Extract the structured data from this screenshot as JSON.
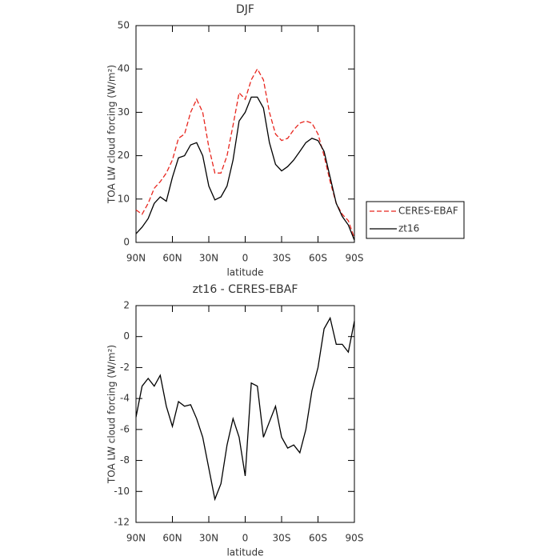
{
  "chart_data": [
    {
      "type": "line",
      "title": "DJF",
      "x_label": "latitude",
      "y_label": "TOA LW cloud forcing (W/m²)",
      "x": [
        90,
        85,
        80,
        75,
        70,
        65,
        60,
        55,
        50,
        45,
        40,
        35,
        30,
        25,
        20,
        15,
        10,
        5,
        0,
        -5,
        -10,
        -15,
        -20,
        -25,
        -30,
        -35,
        -40,
        -45,
        -50,
        -55,
        -60,
        -65,
        -70,
        -75,
        -80,
        -85,
        -90
      ],
      "series": [
        {
          "name": "CERES-EBAF",
          "color": "#e8261e",
          "line_style": "dashed",
          "values": [
            7.5,
            6.5,
            9,
            12.5,
            14,
            16,
            19,
            24,
            25,
            30,
            33,
            30,
            22,
            16,
            16,
            20,
            27,
            34.5,
            33,
            37.5,
            40,
            37.5,
            30,
            25,
            23.5,
            24,
            26,
            27.5,
            28,
            27.5,
            25,
            20,
            14,
            9,
            6.5,
            5,
            1
          ]
        },
        {
          "name": "zt16",
          "color": "#000000",
          "line_style": "solid",
          "values": [
            2,
            3.5,
            5.5,
            9,
            10.5,
            9.5,
            15,
            19.5,
            20,
            22.5,
            23,
            20,
            13,
            9.8,
            10.5,
            13,
            19,
            28,
            30,
            33.5,
            33.5,
            31,
            23,
            18,
            16.5,
            17.5,
            19,
            21,
            23,
            24,
            23.5,
            21,
            15,
            9,
            6,
            4,
            0.5
          ]
        }
      ],
      "xlim": [
        90,
        -90
      ],
      "xticks": [
        {
          "value": 90,
          "label": "90N"
        },
        {
          "value": 60,
          "label": "60N"
        },
        {
          "value": 30,
          "label": "30N"
        },
        0,
        {
          "value": -30,
          "label": "30S"
        },
        {
          "value": -60,
          "label": "60S"
        },
        {
          "value": -90,
          "label": "90S"
        }
      ],
      "ylim": [
        0,
        50
      ],
      "yticks": [
        0,
        10,
        20,
        30,
        40,
        50
      ],
      "legend": "outside-right"
    },
    {
      "type": "line",
      "title": "zt16 - CERES-EBAF",
      "x_label": "latitude",
      "y_label": "TOA LW cloud forcing (W/m²)",
      "x": [
        90,
        85,
        80,
        75,
        70,
        65,
        60,
        55,
        50,
        45,
        40,
        35,
        30,
        25,
        20,
        15,
        10,
        5,
        0,
        -5,
        -10,
        -15,
        -20,
        -25,
        -30,
        -35,
        -40,
        -45,
        -50,
        -55,
        -60,
        -65,
        -70,
        -75,
        -80,
        -85,
        -90
      ],
      "color": "#000000",
      "values": [
        -5.2,
        -3.2,
        -2.7,
        -3.2,
        -2.5,
        -4.5,
        -5.8,
        -4.2,
        -4.5,
        -4.4,
        -5.3,
        -6.5,
        -8.5,
        -10.5,
        -9.5,
        -7,
        -5.3,
        -6.5,
        -9,
        -3,
        -3.2,
        -6.5,
        -5.5,
        -4.5,
        -6.5,
        -7.2,
        -7,
        -7.5,
        -6,
        -3.5,
        -2,
        0.5,
        1.2,
        -0.5,
        -0.5,
        -1,
        1
      ],
      "xlim": [
        90,
        -90
      ],
      "xticks": [
        {
          "value": 90,
          "label": "90N"
        },
        {
          "value": 60,
          "label": "60N"
        },
        {
          "value": 30,
          "label": "30N"
        },
        0,
        {
          "value": -30,
          "label": "30S"
        },
        {
          "value": -60,
          "label": "60S"
        },
        {
          "value": -90,
          "label": "90S"
        }
      ],
      "ylim": [
        -12,
        2
      ],
      "yticks": [
        -12,
        -10,
        -8,
        -6,
        -4,
        -2,
        0,
        2
      ]
    }
  ]
}
